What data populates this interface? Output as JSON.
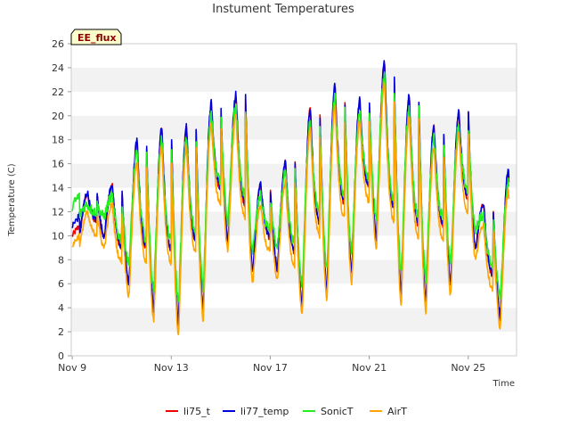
{
  "chart_data": {
    "type": "line",
    "title": "Instument Temperatures",
    "badge": "EE_flux",
    "xlabel": "Time",
    "ylabel": "Temperature (C)",
    "xlim": [
      8.96,
      26.95
    ],
    "ylim": [
      0,
      26
    ],
    "x_ticks": [
      {
        "value": 9,
        "label": "Nov 9"
      },
      {
        "value": 13,
        "label": "Nov 13"
      },
      {
        "value": 17,
        "label": "Nov 17"
      },
      {
        "value": 21,
        "label": "Nov 21"
      },
      {
        "value": 25,
        "label": "Nov 25"
      }
    ],
    "y_ticks": [
      0,
      2,
      4,
      6,
      8,
      10,
      12,
      14,
      16,
      18,
      20,
      22,
      24,
      26
    ],
    "grid": "horizontal alternating bands",
    "legend_position": "bottom",
    "colors": {
      "li75_t": "#ee0000",
      "li77_temp": "#0000dd",
      "SonicT": "#22ee22",
      "AirT": "#ffa500",
      "band": "#f2f2f2",
      "badge_fill": "#ffffcc"
    },
    "days": [
      {
        "day": 9,
        "min": 9.9,
        "max": 13.5
      },
      {
        "day": 10,
        "min": 9.8,
        "max": 14.2
      },
      {
        "day": 11,
        "min": 5.8,
        "max": 17.8
      },
      {
        "day": 12,
        "min": 3.6,
        "max": 19.0
      },
      {
        "day": 13,
        "min": 2.6,
        "max": 19.1
      },
      {
        "day": 14,
        "min": 3.8,
        "max": 21.0
      },
      {
        "day": 15,
        "min": 9.4,
        "max": 21.7
      },
      {
        "day": 16,
        "min": 6.9,
        "max": 14.2
      },
      {
        "day": 17,
        "min": 7.1,
        "max": 16.1
      },
      {
        "day": 18,
        "min": 4.1,
        "max": 20.6
      },
      {
        "day": 19,
        "min": 5.3,
        "max": 22.4
      },
      {
        "day": 20,
        "min": 6.7,
        "max": 21.2
      },
      {
        "day": 21,
        "min": 9.6,
        "max": 24.3
      },
      {
        "day": 22,
        "min": 5.0,
        "max": 21.6
      },
      {
        "day": 23,
        "min": 4.4,
        "max": 19.0
      },
      {
        "day": 24,
        "min": 5.8,
        "max": 20.2
      },
      {
        "day": 25,
        "min": 8.8,
        "max": 12.6
      },
      {
        "day": 26,
        "min": 3.1,
        "max": 15.3
      }
    ],
    "end": 26.65,
    "series": [
      {
        "name": "li75_t",
        "min_offset": 0.0,
        "max_offset": 0.0,
        "noise": 0.25,
        "start_value": 10.0
      },
      {
        "name": "li77_temp",
        "min_offset": 0.2,
        "max_offset": 0.1,
        "noise": 0.3,
        "start_value": 10.8
      },
      {
        "name": "SonicT",
        "min_offset": 1.8,
        "max_offset": -0.9,
        "noise": 0.45,
        "start_value": 12.5
      },
      {
        "name": "AirT",
        "min_offset": -0.8,
        "max_offset": -1.6,
        "noise": 0.25,
        "start_value": 9.2
      }
    ]
  }
}
